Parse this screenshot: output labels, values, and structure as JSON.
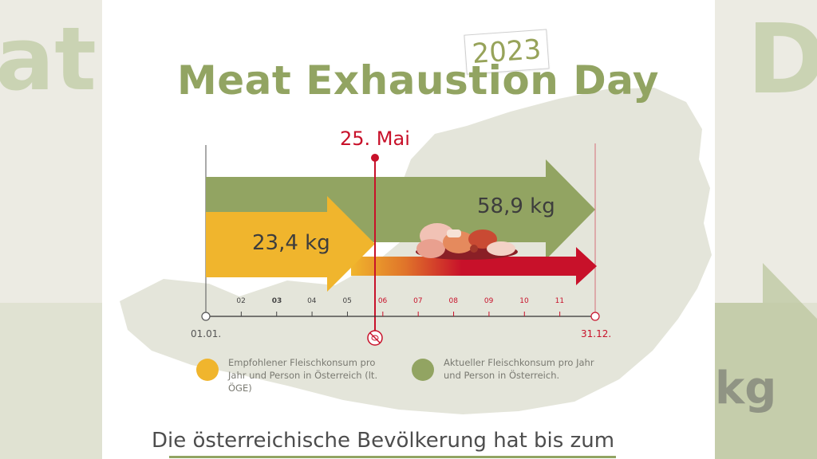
{
  "title": "Meat Exhaustion Day",
  "year": "2023",
  "marker_date": "25. Mai",
  "recommended": {
    "value_label": "23,4 kg",
    "color": "#f0b52d"
  },
  "actual": {
    "value_label": "58,9 kg",
    "color": "#92a462"
  },
  "excess_color": "#c8112a",
  "timeline": {
    "start_label": "01.01.",
    "end_label": "31.12.",
    "months": [
      "02",
      "03",
      "04",
      "05",
      "06",
      "07",
      "08",
      "09",
      "10",
      "11"
    ]
  },
  "legend": {
    "recommended_text": "Empfohlener Fleischkonsum pro Jahr und Person in Österreich (lt. ÖGE)",
    "actual_text": "Aktueller Fleischkonsum pro Jahr und Person in Österreich."
  },
  "bottom_text": "Die österreichische Bevölkerung hat bis zum",
  "background_fragments": {
    "left": "at",
    "right_top": "D",
    "right_bottom": "kg"
  }
}
